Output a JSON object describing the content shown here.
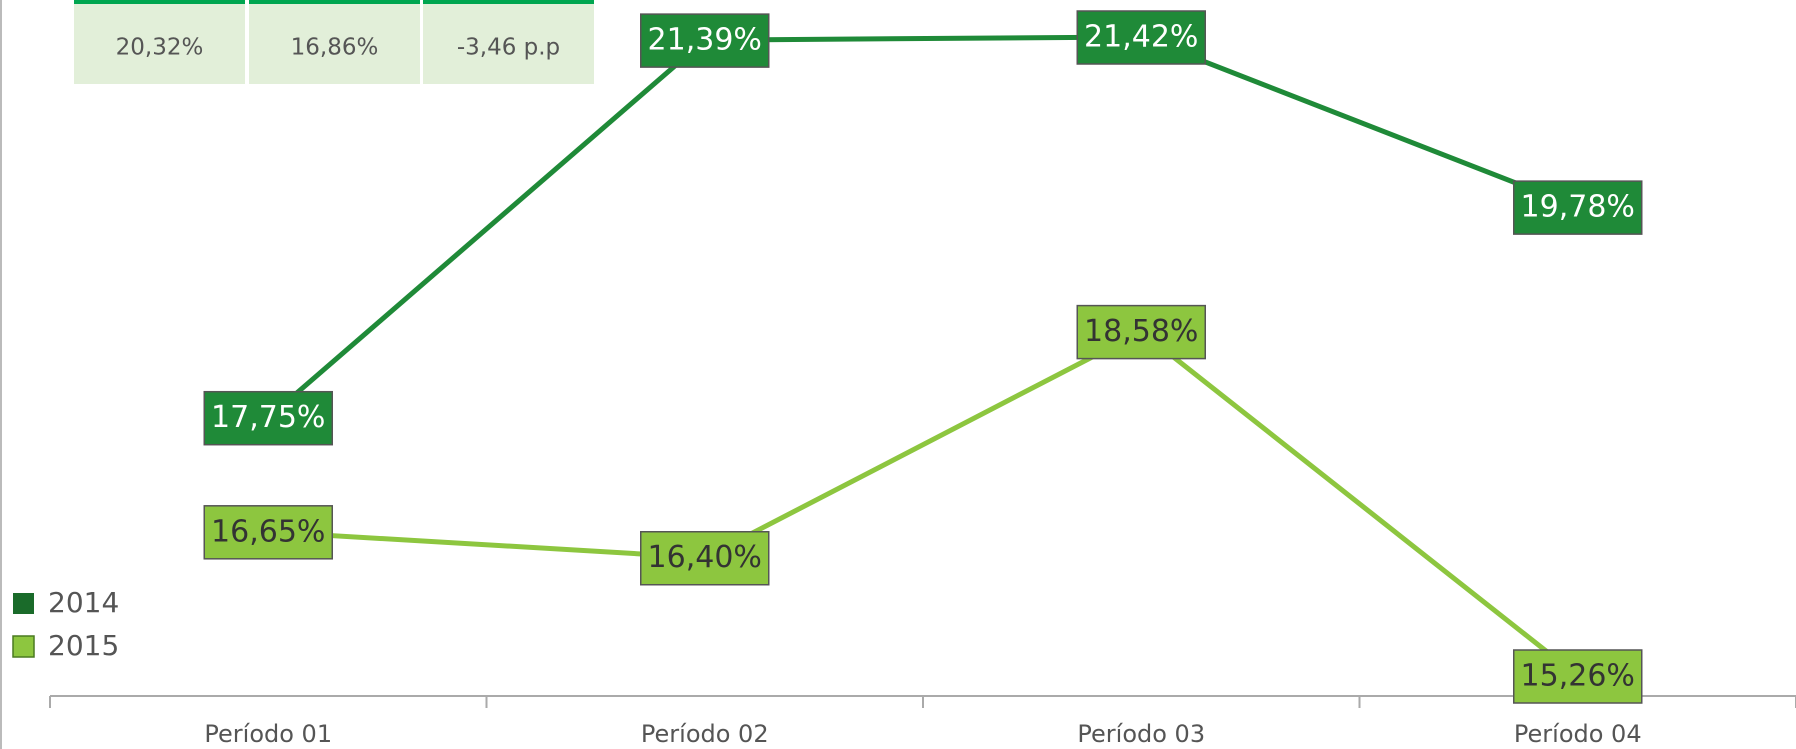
{
  "summary_table": {
    "cells": [
      "20,32%",
      "16,86%",
      "-3,46 p.p"
    ]
  },
  "chart_data": {
    "type": "line",
    "categories": [
      "Período 01",
      "Período 02",
      "Período 03",
      "Período 04"
    ],
    "legend": "lower-left",
    "series": [
      {
        "name": "2014",
        "color": "#1f8a38",
        "values": [
          17.75,
          21.39,
          21.42,
          19.78
        ],
        "value_labels": [
          "17,75%",
          "21,39%",
          "21,42%",
          "19,78%"
        ]
      },
      {
        "name": "2015",
        "color": "#8dc63f",
        "values": [
          16.65,
          16.4,
          18.58,
          15.26
        ],
        "value_labels": [
          "16,65%",
          "16,40%",
          "18,58%",
          "15,26%"
        ]
      }
    ]
  }
}
